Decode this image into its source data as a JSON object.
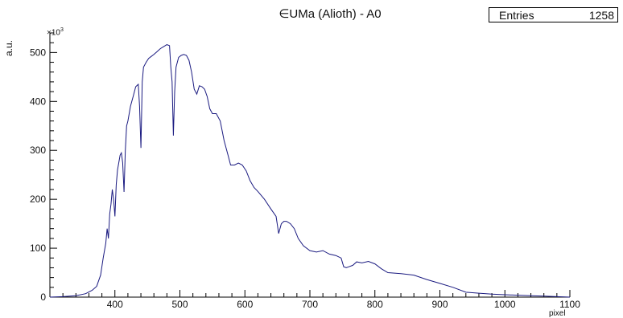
{
  "chart_data": {
    "type": "line",
    "title": "∈UMa (Alioth) - A0",
    "xlabel": "pixel",
    "ylabel": "a.u.",
    "y_multiplier_base": "×10",
    "y_multiplier_exp": "3",
    "xlim": [
      300,
      1100
    ],
    "ylim": [
      0,
      540
    ],
    "x_ticks": [
      400,
      500,
      600,
      700,
      800,
      900,
      1000,
      1100
    ],
    "y_ticks": [
      0,
      100,
      200,
      300,
      400,
      500
    ],
    "grid": false,
    "line_color": "#1a1a80",
    "stats_box": {
      "label": "Entries",
      "value": "1258"
    },
    "series": [
      {
        "x": [
          300,
          320,
          340,
          355,
          365,
          372,
          378,
          382,
          386,
          388,
          390,
          392,
          394,
          396,
          398,
          400,
          402,
          404,
          406,
          408,
          410,
          412,
          414,
          416,
          418,
          420,
          424,
          428,
          432,
          436,
          438,
          440,
          442,
          444,
          448,
          452,
          456,
          460,
          465,
          470,
          475,
          480,
          484,
          486,
          488,
          490,
          492,
          494,
          498,
          502,
          506,
          510,
          514,
          518,
          522,
          526,
          530,
          534,
          538,
          542,
          546,
          550,
          556,
          562,
          568,
          574,
          578,
          584,
          590,
          596,
          602,
          608,
          614,
          620,
          630,
          640,
          648,
          652,
          656,
          660,
          664,
          670,
          676,
          682,
          690,
          700,
          710,
          720,
          730,
          740,
          748,
          752,
          756,
          760,
          766,
          772,
          780,
          790,
          800,
          810,
          820,
          840,
          860,
          880,
          900,
          920,
          940,
          960,
          980,
          1000,
          1020,
          1040,
          1060,
          1080,
          1100
        ],
        "y": [
          0,
          1,
          3,
          7,
          14,
          22,
          45,
          80,
          110,
          140,
          120,
          170,
          190,
          220,
          200,
          165,
          230,
          260,
          275,
          290,
          295,
          275,
          215,
          300,
          350,
          360,
          390,
          410,
          430,
          435,
          390,
          305,
          440,
          470,
          480,
          488,
          492,
          496,
          502,
          508,
          512,
          516,
          514,
          470,
          440,
          330,
          420,
          470,
          490,
          494,
          496,
          494,
          484,
          460,
          425,
          415,
          432,
          430,
          425,
          410,
          385,
          375,
          375,
          360,
          320,
          290,
          270,
          270,
          274,
          270,
          258,
          238,
          224,
          216,
          200,
          180,
          165,
          130,
          150,
          155,
          155,
          150,
          140,
          120,
          105,
          95,
          92,
          95,
          88,
          85,
          80,
          62,
          60,
          62,
          65,
          72,
          70,
          73,
          68,
          58,
          50,
          48,
          45,
          36,
          28,
          20,
          10,
          8,
          6,
          5,
          4,
          3,
          2,
          1,
          0
        ]
      }
    ]
  }
}
